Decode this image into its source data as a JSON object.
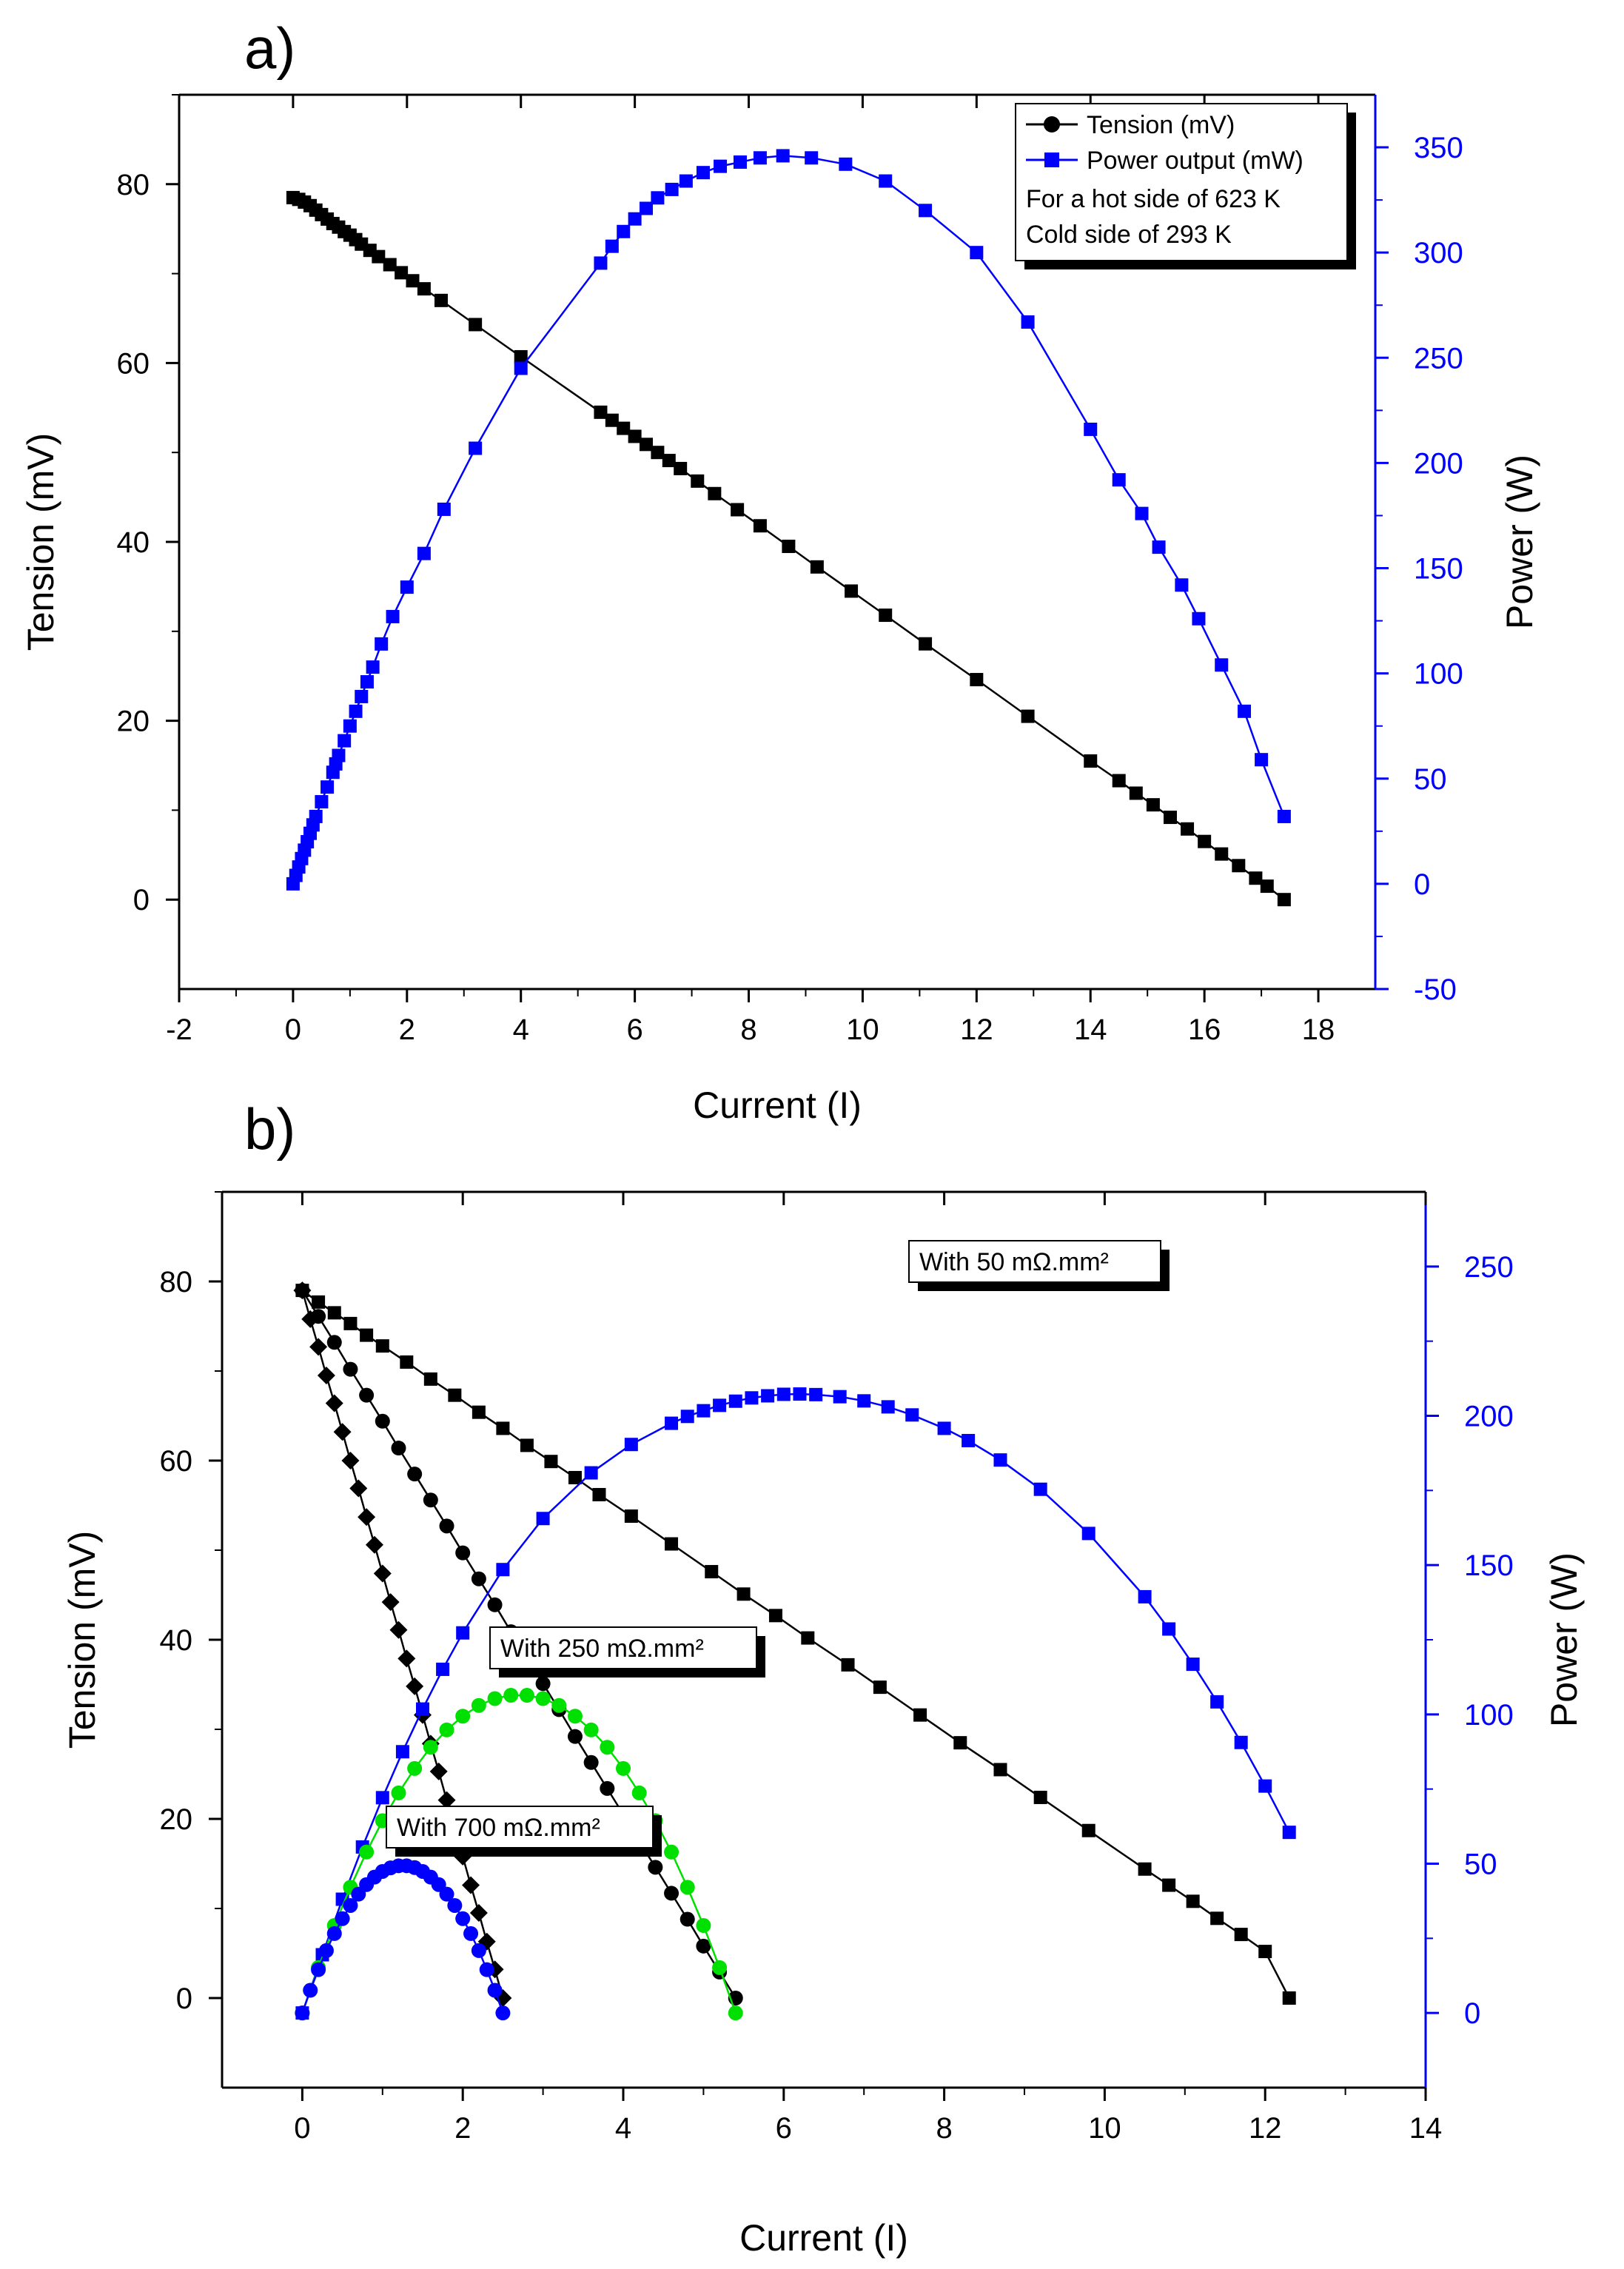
{
  "chart_data": [
    {
      "panel_label": "a)",
      "type": "line",
      "xlabel": "Current (I)",
      "ylabel": "Tension (mV)",
      "y2label": "Power (W)",
      "xlim": [
        -2,
        19
      ],
      "ylim": [
        -10,
        90
      ],
      "y2lim": [
        -50,
        375
      ],
      "x_ticks": [
        "-2",
        "0",
        "2",
        "4",
        "6",
        "8",
        "10",
        "12",
        "14",
        "16",
        "18"
      ],
      "y_ticks": [
        "0",
        "20",
        "40",
        "60",
        "80"
      ],
      "y2_ticks": [
        "-50",
        "0",
        "50",
        "100",
        "150",
        "200",
        "250",
        "300",
        "350"
      ],
      "legend": {
        "position": "top-right",
        "entries": [
          "Tension (mV)",
          "Power output (mW)"
        ],
        "notes": [
          "For a hot side of 623 K",
          "Cold side of 293 K"
        ]
      },
      "colors": {
        "tension": "#000000",
        "power": "#0000ff"
      },
      "series": [
        {
          "name": "Tension (mV)",
          "axis": "left",
          "marker": "square",
          "x": [
            0,
            0.1,
            0.2,
            0.3,
            0.4,
            0.5,
            0.6,
            0.7,
            0.8,
            0.9,
            1.0,
            1.1,
            1.2,
            1.35,
            1.5,
            1.7,
            1.9,
            2.1,
            2.3,
            2.6,
            3.2,
            4.0,
            5.4,
            5.6,
            5.8,
            6.0,
            6.2,
            6.4,
            6.6,
            6.8,
            7.1,
            7.4,
            7.8,
            8.2,
            8.7,
            9.2,
            9.8,
            10.4,
            11.1,
            12.0,
            12.9,
            14.0,
            14.5,
            14.8,
            15.1,
            15.4,
            15.7,
            16.0,
            16.3,
            16.6,
            16.9,
            17.1,
            17.4
          ],
          "y": [
            78.5,
            78.3,
            78.0,
            77.6,
            77.1,
            76.6,
            76.1,
            75.6,
            75.2,
            74.7,
            74.3,
            73.8,
            73.3,
            72.6,
            71.9,
            71.0,
            70.1,
            69.2,
            68.3,
            67.0,
            64.3,
            60.7,
            54.5,
            53.6,
            52.7,
            51.8,
            50.9,
            50.0,
            49.1,
            48.2,
            46.8,
            45.4,
            43.6,
            41.8,
            39.5,
            37.2,
            34.5,
            31.8,
            28.6,
            24.6,
            20.5,
            15.5,
            13.3,
            11.9,
            10.6,
            9.2,
            7.9,
            6.5,
            5.1,
            3.8,
            2.4,
            1.5,
            0
          ]
        },
        {
          "name": "Power output (mW)",
          "axis": "right",
          "marker": "square",
          "x": [
            0,
            0.05,
            0.1,
            0.15,
            0.2,
            0.25,
            0.3,
            0.35,
            0.4,
            0.5,
            0.6,
            0.7,
            0.75,
            0.8,
            0.9,
            1.0,
            1.1,
            1.2,
            1.3,
            1.4,
            1.55,
            1.75,
            2.0,
            2.3,
            2.65,
            3.2,
            4.0,
            5.4,
            5.6,
            5.8,
            6.0,
            6.2,
            6.4,
            6.65,
            6.9,
            7.2,
            7.5,
            7.85,
            8.2,
            8.6,
            9.1,
            9.7,
            10.4,
            11.1,
            12.0,
            12.9,
            14.0,
            14.5,
            14.9,
            15.2,
            15.6,
            15.9,
            16.3,
            16.7,
            17.0,
            17.4
          ],
          "y": [
            0,
            4,
            8,
            12,
            16,
            20,
            24,
            28,
            32,
            39,
            46,
            53,
            57,
            61,
            68,
            75,
            82,
            89,
            96,
            103,
            114,
            127,
            141,
            157,
            178,
            207,
            245,
            295,
            303,
            310,
            316,
            321,
            326,
            330,
            334,
            338,
            341,
            343,
            345,
            346,
            345,
            342,
            334,
            320,
            300,
            267,
            216,
            192,
            176,
            160,
            142,
            126,
            104,
            82,
            59,
            32
          ]
        }
      ]
    },
    {
      "panel_label": "b)",
      "type": "line",
      "xlabel": "Current (I)",
      "ylabel": "Tension (mV)",
      "y2label": "Power (W)",
      "xlim": [
        -1,
        14
      ],
      "ylim": [
        -10,
        90
      ],
      "y2lim": [
        -25,
        275
      ],
      "x_ticks": [
        "0",
        "2",
        "4",
        "6",
        "8",
        "10",
        "12",
        "14"
      ],
      "y_ticks": [
        "0",
        "20",
        "40",
        "60",
        "80"
      ],
      "y2_ticks": [
        "0",
        "50",
        "100",
        "150",
        "200",
        "250"
      ],
      "annotations": [
        "With 50 mΩ.mm²",
        "With 250 mΩ.mm²",
        "With 700 mΩ.mm²"
      ],
      "colors": {
        "tension": "#000000",
        "power_50": "#0000ff",
        "power_250": "#00e000",
        "power_700": "#0000ff"
      },
      "series": [
        {
          "name": "Tension 50 mΩ.mm²",
          "axis": "left",
          "marker": "square",
          "x": [
            0,
            0.2,
            0.4,
            0.6,
            0.8,
            1.0,
            1.3,
            1.6,
            1.9,
            2.2,
            2.5,
            2.8,
            3.1,
            3.4,
            3.7,
            4.1,
            4.6,
            5.1,
            5.5,
            5.9,
            6.3,
            6.8,
            7.2,
            7.7,
            8.2,
            8.7,
            9.2,
            9.8,
            10.5,
            10.8,
            11.1,
            11.4,
            11.7,
            12.0,
            12.3
          ],
          "y": [
            79,
            77.7,
            76.5,
            75.3,
            74,
            72.8,
            71,
            69.1,
            67.3,
            65.4,
            63.6,
            61.7,
            59.9,
            58.1,
            56.2,
            53.8,
            50.7,
            47.6,
            45.1,
            42.7,
            40.2,
            37.2,
            34.7,
            31.6,
            28.5,
            25.5,
            22.4,
            18.7,
            14.4,
            12.6,
            10.8,
            8.9,
            7.1,
            5.2,
            0
          ]
        },
        {
          "name": "Tension 250 mΩ.mm²",
          "axis": "left",
          "marker": "circle",
          "x": [
            0,
            0.2,
            0.4,
            0.6,
            0.8,
            1.0,
            1.2,
            1.4,
            1.6,
            1.8,
            2.0,
            2.2,
            2.4,
            2.6,
            2.8,
            3.0,
            3.2,
            3.4,
            3.6,
            3.8,
            4.0,
            4.2,
            4.4,
            4.6,
            4.8,
            5.0,
            5.2,
            5.4
          ],
          "y": [
            79,
            76.1,
            73.2,
            70.2,
            67.3,
            64.4,
            61.4,
            58.5,
            55.6,
            52.7,
            49.7,
            46.8,
            43.9,
            40.9,
            38,
            35.1,
            32.2,
            29.2,
            26.3,
            23.4,
            20.5,
            17.5,
            14.6,
            11.7,
            8.8,
            5.8,
            2.9,
            0
          ]
        },
        {
          "name": "Tension 700 mΩ.mm²",
          "axis": "left",
          "marker": "diamond",
          "x": [
            0,
            0.1,
            0.2,
            0.3,
            0.4,
            0.5,
            0.6,
            0.7,
            0.8,
            0.9,
            1.0,
            1.1,
            1.2,
            1.3,
            1.4,
            1.5,
            1.6,
            1.7,
            1.8,
            1.9,
            2.0,
            2.1,
            2.2,
            2.3,
            2.4,
            2.5
          ],
          "y": [
            79,
            75.8,
            72.7,
            69.5,
            66.4,
            63.2,
            60,
            56.9,
            53.7,
            50.6,
            47.4,
            44.2,
            41.1,
            37.9,
            34.8,
            31.6,
            28.4,
            25.3,
            22.1,
            19,
            15.8,
            12.6,
            9.5,
            6.3,
            3.2,
            0
          ]
        },
        {
          "name": "Power 50 mΩ.mm²",
          "axis": "right",
          "marker": "square",
          "x": [
            0,
            0.25,
            0.5,
            0.75,
            1.0,
            1.25,
            1.5,
            1.75,
            2.0,
            2.5,
            3.0,
            3.6,
            4.1,
            4.6,
            4.8,
            5.0,
            5.2,
            5.4,
            5.6,
            5.8,
            6.0,
            6.2,
            6.4,
            6.7,
            7.0,
            7.3,
            7.6,
            8.0,
            8.3,
            8.7,
            9.2,
            9.8,
            10.5,
            10.8,
            11.1,
            11.4,
            11.7,
            12.0,
            12.3
          ],
          "y": [
            0,
            19.5,
            38.1,
            55.6,
            72.1,
            87.5,
            101.8,
            115.1,
            127.3,
            148.5,
            165.6,
            180.9,
            190.4,
            197.5,
            199.8,
            201.7,
            203.5,
            204.9,
            206,
            206.7,
            207.2,
            207.3,
            207.1,
            206.4,
            205,
            203,
            200.3,
            195.8,
            191.7,
            185.2,
            175.4,
            160.6,
            139.4,
            128.6,
            116.8,
            104.2,
            90.6,
            76,
            60.5
          ]
        },
        {
          "name": "Power 250 mΩ.mm²",
          "axis": "right",
          "marker": "circle",
          "x": [
            0,
            0.2,
            0.4,
            0.6,
            0.8,
            1.0,
            1.2,
            1.4,
            1.6,
            1.8,
            2.0,
            2.2,
            2.4,
            2.6,
            2.8,
            3.0,
            3.2,
            3.4,
            3.6,
            3.8,
            4.0,
            4.2,
            4.4,
            4.6,
            4.8,
            5.0,
            5.2,
            5.4
          ],
          "y": [
            0,
            15.2,
            29.3,
            42.1,
            53.9,
            64.4,
            73.7,
            81.9,
            89,
            94.8,
            99.4,
            103,
            105.3,
            106.4,
            106.4,
            105.3,
            103,
            99.4,
            94.8,
            89,
            81.9,
            73.7,
            64.4,
            53.9,
            42.1,
            29.3,
            15.2,
            0
          ]
        },
        {
          "name": "Power 700 mΩ.mm²",
          "axis": "right",
          "marker": "circle",
          "x": [
            0,
            0.1,
            0.2,
            0.3,
            0.4,
            0.5,
            0.6,
            0.7,
            0.8,
            0.9,
            1.0,
            1.1,
            1.2,
            1.3,
            1.4,
            1.5,
            1.6,
            1.7,
            1.8,
            1.9,
            2.0,
            2.1,
            2.2,
            2.3,
            2.4,
            2.5
          ],
          "y": [
            0,
            7.6,
            14.5,
            20.9,
            26.6,
            31.6,
            36,
            39.8,
            43,
            45.5,
            47.4,
            48.6,
            49.3,
            49.3,
            48.7,
            47.4,
            45.5,
            43,
            39.8,
            36,
            31.6,
            26.6,
            20.9,
            14.5,
            7.6,
            0
          ]
        }
      ]
    }
  ]
}
